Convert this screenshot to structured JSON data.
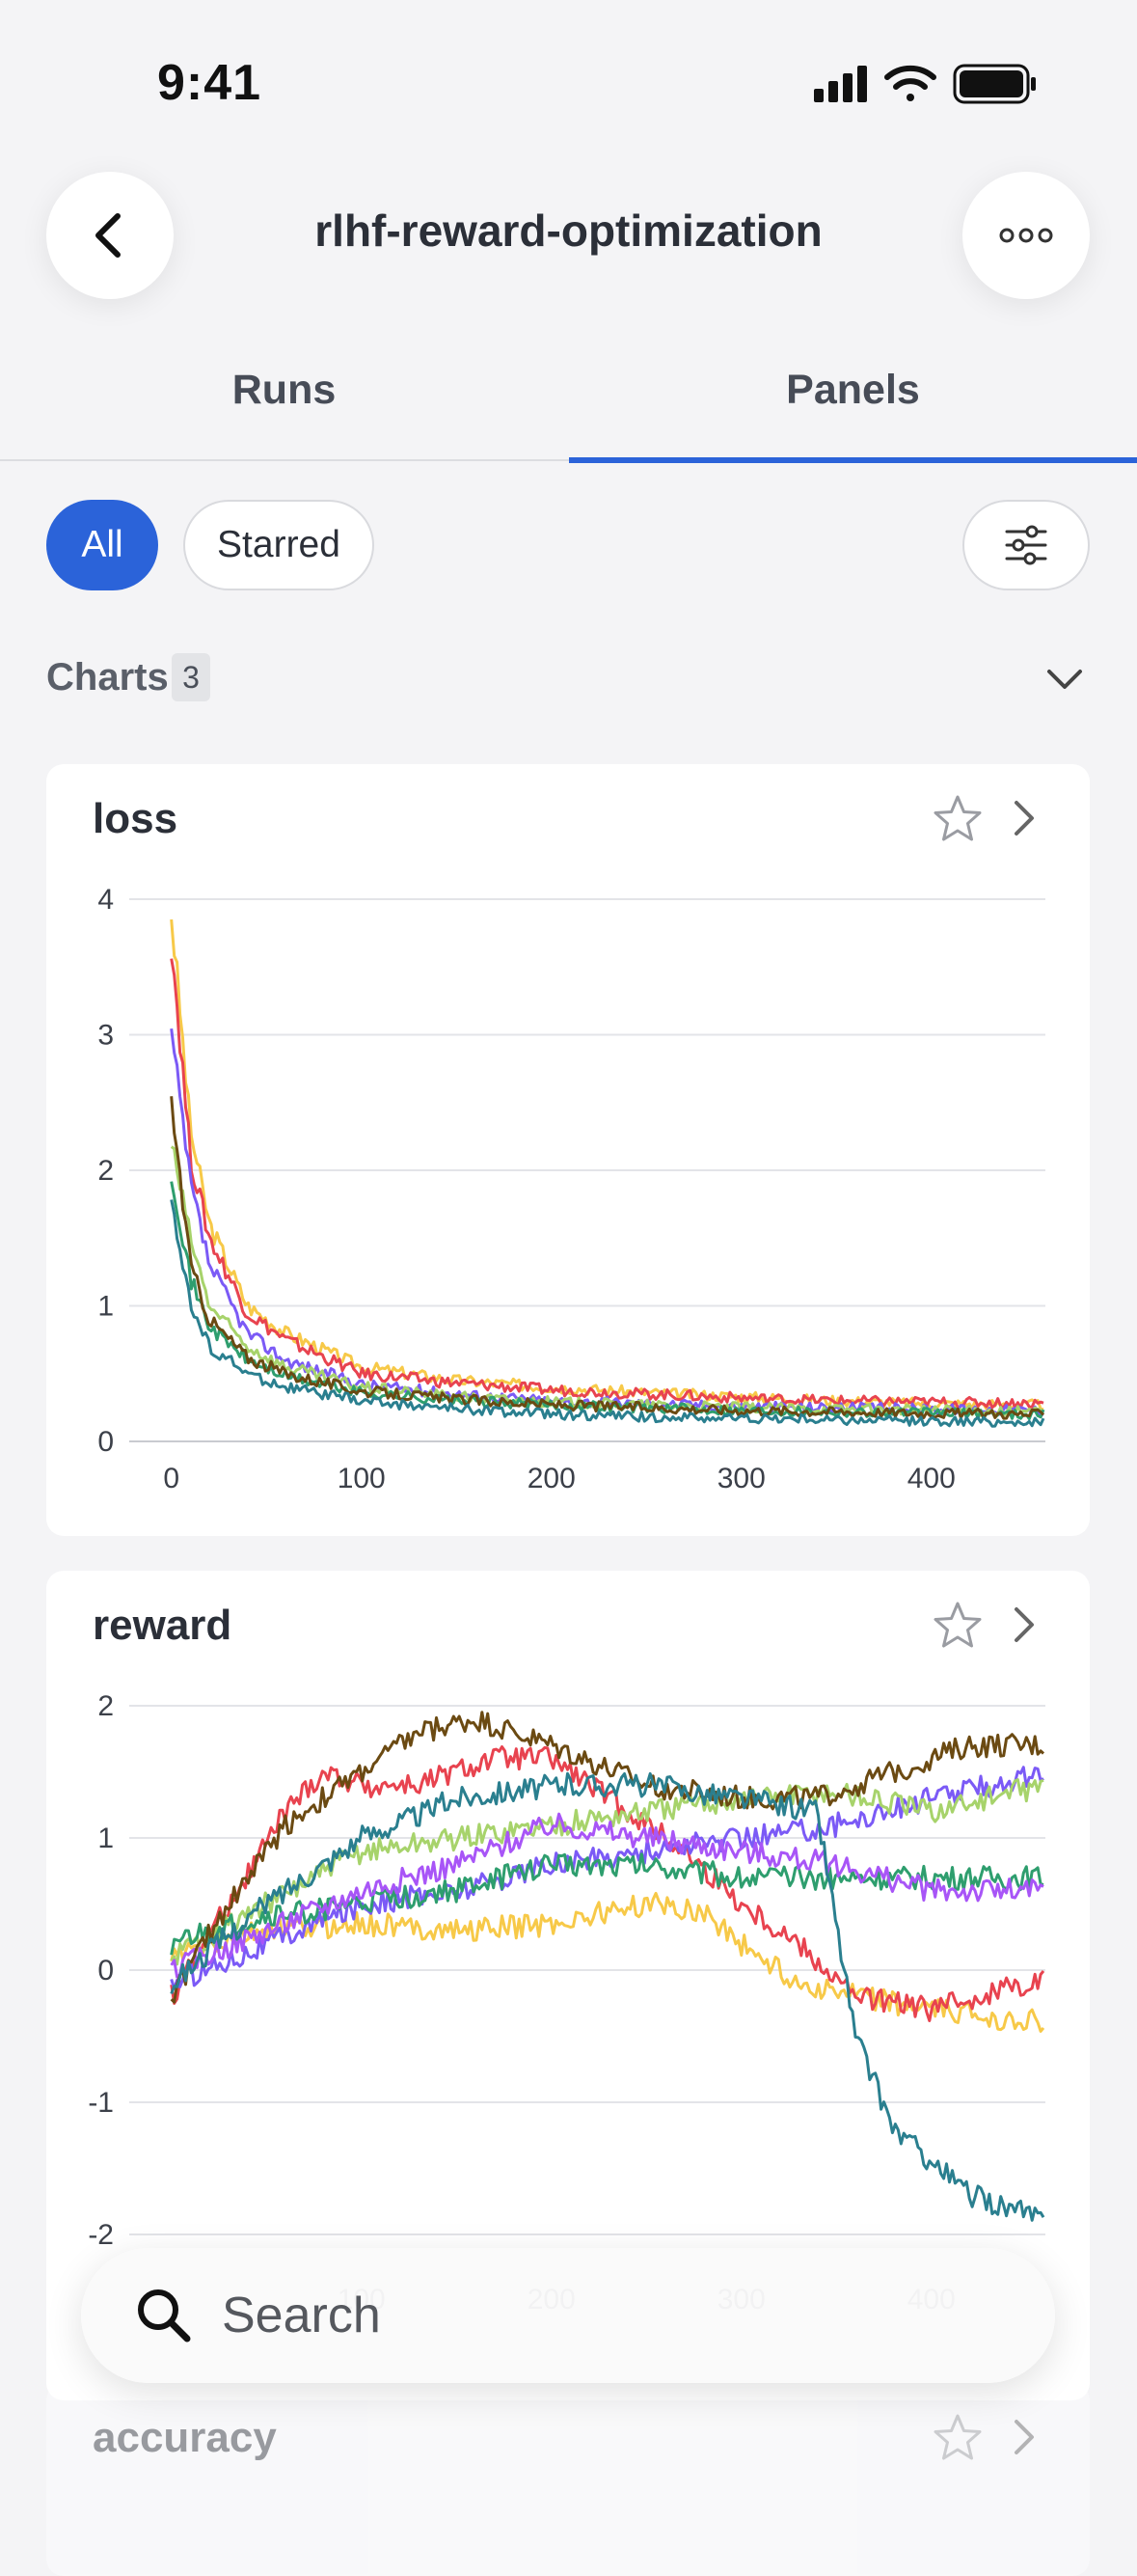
{
  "status_bar": {
    "time": "9:41",
    "icons": [
      "cellular-signal-icon",
      "wifi-icon",
      "battery-icon"
    ]
  },
  "header": {
    "title": "rlhf-reward-optimization",
    "back_icon": "chevron-left-icon",
    "more_icon": "ellipsis-icon"
  },
  "tabs": [
    {
      "label": "Runs",
      "selected": false
    },
    {
      "label": "Panels",
      "selected": true
    }
  ],
  "filters": {
    "chips": [
      {
        "label": "All",
        "selected": true
      },
      {
        "label": "Starred",
        "selected": false
      }
    ],
    "settings_icon": "sliders-icon"
  },
  "section": {
    "title": "Charts",
    "count": "3",
    "toggle_icon": "chevron-down-icon"
  },
  "search": {
    "placeholder": "Search",
    "icon": "search-icon"
  },
  "colors": {
    "accent": "#2b63d9",
    "series": [
      "#f7c948",
      "#e8434f",
      "#7b5af6",
      "#a7d36b",
      "#2e9e6e",
      "#6b4a12",
      "#2a7f8f",
      "#a855f7"
    ]
  },
  "chart_data": [
    {
      "type": "line",
      "title": "loss",
      "x_ticks": [
        0,
        100,
        200,
        300,
        400
      ],
      "y_ticks": [
        0,
        1,
        2,
        3,
        4
      ],
      "xlim": [
        -10,
        460
      ],
      "ylim": [
        0,
        4
      ],
      "grid": true,
      "series": [
        {
          "color": "#f7c948",
          "x": [
            0,
            10,
            20,
            40,
            60,
            100,
            150,
            200,
            250,
            300,
            350,
            400,
            460
          ],
          "y": [
            3.9,
            2.3,
            1.6,
            1.0,
            0.8,
            0.55,
            0.45,
            0.4,
            0.36,
            0.33,
            0.3,
            0.28,
            0.27
          ]
        },
        {
          "color": "#e8434f",
          "x": [
            0,
            10,
            20,
            40,
            60,
            100,
            150,
            200,
            250,
            300,
            350,
            400,
            460
          ],
          "y": [
            3.7,
            2.1,
            1.5,
            0.95,
            0.75,
            0.5,
            0.43,
            0.38,
            0.35,
            0.32,
            0.3,
            0.29,
            0.28
          ]
        },
        {
          "color": "#7b5af6",
          "x": [
            0,
            10,
            20,
            40,
            60,
            100,
            150,
            200,
            250,
            300,
            350,
            400,
            460
          ],
          "y": [
            3.0,
            1.9,
            1.3,
            0.8,
            0.6,
            0.42,
            0.35,
            0.3,
            0.28,
            0.26,
            0.25,
            0.24,
            0.23
          ]
        },
        {
          "color": "#a7d36b",
          "x": [
            0,
            10,
            20,
            40,
            60,
            100,
            150,
            200,
            250,
            300,
            350,
            400,
            460
          ],
          "y": [
            2.2,
            1.5,
            1.0,
            0.7,
            0.55,
            0.4,
            0.33,
            0.29,
            0.27,
            0.25,
            0.24,
            0.23,
            0.22
          ]
        },
        {
          "color": "#2e9e6e",
          "x": [
            0,
            10,
            20,
            40,
            60,
            100,
            150,
            200,
            250,
            300,
            350,
            400,
            460
          ],
          "y": [
            2.0,
            1.2,
            0.85,
            0.6,
            0.48,
            0.36,
            0.3,
            0.27,
            0.25,
            0.23,
            0.22,
            0.21,
            0.2
          ]
        },
        {
          "color": "#6b4a12",
          "x": [
            0,
            10,
            20,
            40,
            60,
            100,
            150,
            200,
            250,
            300,
            350,
            400,
            460
          ],
          "y": [
            2.5,
            1.3,
            0.9,
            0.62,
            0.5,
            0.37,
            0.31,
            0.27,
            0.25,
            0.23,
            0.22,
            0.21,
            0.2
          ]
        },
        {
          "color": "#2a7f8f",
          "x": [
            0,
            10,
            20,
            40,
            60,
            100,
            150,
            200,
            250,
            300,
            350,
            400,
            460
          ],
          "y": [
            1.8,
            1.0,
            0.7,
            0.5,
            0.4,
            0.3,
            0.24,
            0.2,
            0.18,
            0.17,
            0.16,
            0.15,
            0.14
          ]
        }
      ]
    },
    {
      "type": "line",
      "title": "reward",
      "x_ticks": [
        100,
        200,
        300,
        400
      ],
      "y_ticks": [
        -2,
        -1,
        0,
        1,
        2
      ],
      "xlim": [
        -10,
        460
      ],
      "ylim": [
        -2,
        2
      ],
      "grid": true,
      "series": [
        {
          "color": "#f7c948",
          "x": [
            0,
            50,
            100,
            150,
            200,
            250,
            280,
            300,
            330,
            360,
            400,
            460
          ],
          "y": [
            0.1,
            0.3,
            0.35,
            0.3,
            0.35,
            0.5,
            0.45,
            0.2,
            -0.1,
            -0.2,
            -0.3,
            -0.4
          ]
        },
        {
          "color": "#e8434f",
          "x": [
            0,
            30,
            60,
            80,
            100,
            130,
            170,
            200,
            240,
            270,
            300,
            330,
            360,
            400,
            460
          ],
          "y": [
            -0.2,
            0.5,
            1.2,
            1.5,
            1.4,
            1.4,
            1.6,
            1.6,
            1.2,
            0.9,
            0.5,
            0.2,
            -0.2,
            -0.3,
            -0.05
          ]
        },
        {
          "color": "#7b5af6",
          "x": [
            0,
            50,
            100,
            150,
            200,
            250,
            300,
            350,
            400,
            460
          ],
          "y": [
            -0.1,
            0.2,
            0.5,
            0.6,
            0.8,
            0.9,
            1.0,
            1.1,
            1.3,
            1.5
          ]
        },
        {
          "color": "#a7d36b",
          "x": [
            0,
            50,
            100,
            150,
            200,
            250,
            300,
            350,
            400,
            460
          ],
          "y": [
            0.1,
            0.5,
            0.9,
            1.0,
            1.1,
            1.2,
            1.3,
            1.35,
            1.2,
            1.4
          ]
        },
        {
          "color": "#2e9e6e",
          "x": [
            0,
            50,
            100,
            150,
            200,
            250,
            300,
            350,
            400,
            460
          ],
          "y": [
            0.2,
            0.4,
            0.5,
            0.6,
            0.8,
            0.8,
            0.7,
            0.7,
            0.7,
            0.7
          ]
        },
        {
          "color": "#a855f7",
          "x": [
            0,
            50,
            100,
            150,
            200,
            250,
            300,
            350,
            400,
            460
          ],
          "y": [
            0.0,
            0.3,
            0.6,
            0.8,
            1.1,
            1.0,
            0.9,
            0.8,
            0.6,
            0.6
          ]
        },
        {
          "color": "#6b4a12",
          "x": [
            0,
            30,
            60,
            100,
            130,
            160,
            200,
            250,
            300,
            340,
            380,
            420,
            460
          ],
          "y": [
            -0.2,
            0.5,
            1.1,
            1.5,
            1.8,
            1.9,
            1.7,
            1.4,
            1.3,
            1.3,
            1.5,
            1.7,
            1.7
          ]
        },
        {
          "color": "#2a7f8f",
          "x": [
            0,
            50,
            100,
            150,
            200,
            250,
            300,
            340,
            360,
            380,
            420,
            460
          ],
          "y": [
            -0.1,
            0.5,
            1.0,
            1.3,
            1.4,
            1.4,
            1.3,
            1.2,
            -0.5,
            -1.2,
            -1.7,
            -1.9
          ]
        }
      ]
    },
    {
      "type": "line",
      "title": "accuracy"
    }
  ]
}
